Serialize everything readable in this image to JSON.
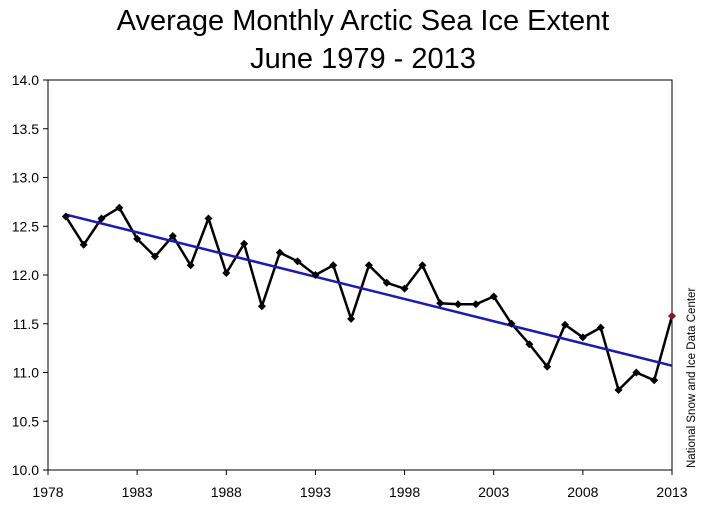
{
  "chart_data": {
    "type": "line",
    "title_lines": [
      "Average Monthly Arctic Sea Ice Extent",
      "June 1979 - 2013"
    ],
    "xlabel": "",
    "ylabel": "",
    "xlim": [
      1978,
      2013
    ],
    "ylim": [
      10.0,
      14.0
    ],
    "x_ticks": [
      1978,
      1983,
      1988,
      1993,
      1998,
      2003,
      2008,
      2013
    ],
    "x_tick_labels": [
      "1978",
      "1983",
      "1988",
      "1993",
      "1998",
      "2003",
      "2008",
      "2013"
    ],
    "y_ticks": [
      10.0,
      10.5,
      11.0,
      11.5,
      12.0,
      12.5,
      13.0,
      13.5,
      14.0
    ],
    "y_tick_labels": [
      "10.0",
      "10.5",
      "11.0",
      "11.5",
      "12.0",
      "12.5",
      "13.0",
      "13.5",
      "14.0"
    ],
    "grid": false,
    "legend": "none",
    "credit": "National Snow and Ice Data Center",
    "series": [
      {
        "name": "June extent",
        "color": "#000000",
        "x": [
          1979,
          1980,
          1981,
          1982,
          1983,
          1984,
          1985,
          1986,
          1987,
          1988,
          1989,
          1990,
          1991,
          1992,
          1993,
          1994,
          1995,
          1996,
          1997,
          1998,
          1999,
          2000,
          2001,
          2002,
          2003,
          2004,
          2005,
          2006,
          2007,
          2008,
          2009,
          2010,
          2011,
          2012,
          2013
        ],
        "values": [
          12.6,
          12.31,
          12.58,
          12.69,
          12.37,
          12.19,
          12.4,
          12.1,
          12.58,
          12.02,
          12.32,
          11.68,
          12.23,
          12.14,
          12.0,
          12.1,
          11.55,
          12.1,
          11.92,
          11.86,
          12.1,
          11.71,
          11.7,
          11.7,
          11.78,
          11.5,
          11.29,
          11.06,
          11.49,
          11.36,
          11.46,
          10.82,
          11.0,
          10.92,
          11.58
        ],
        "highlight_last_color": "#8b1a1a"
      },
      {
        "name": "Linear trend",
        "color": "#1a1ab4",
        "x": [
          1979,
          2013
        ],
        "values": [
          12.62,
          11.07
        ]
      }
    ]
  }
}
